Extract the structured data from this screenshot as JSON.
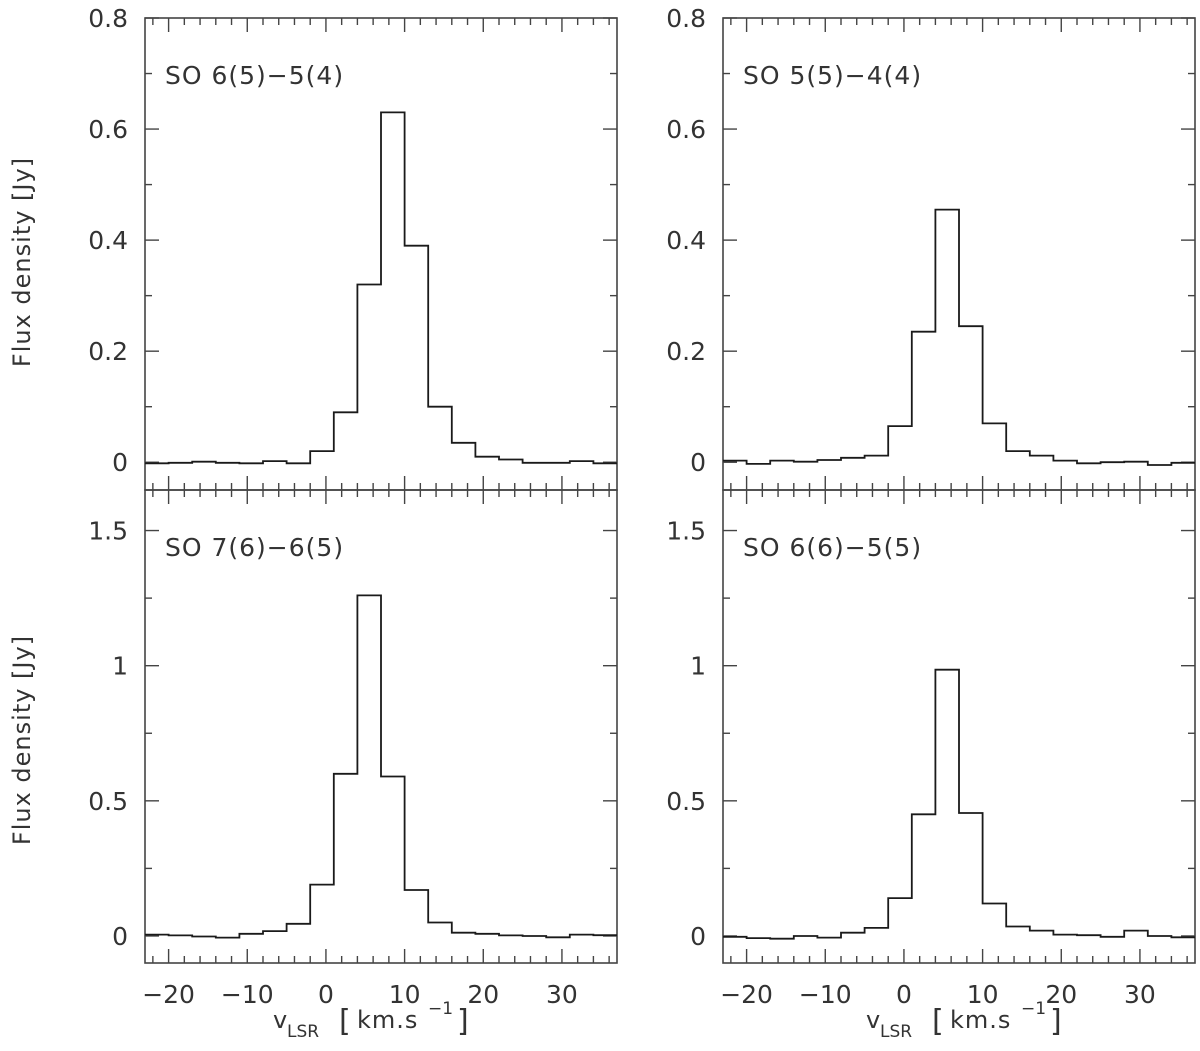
{
  "chart_data": [
    {
      "type": "line",
      "step": true,
      "label": "SO 6(5)−5(4)",
      "xlim": [
        -23,
        37
      ],
      "ylim": [
        -0.05,
        0.8
      ],
      "yticks": [
        0,
        0.2,
        0.4,
        0.6,
        0.8
      ],
      "ytick_labels": [
        "0",
        "0.2",
        "0.4",
        "0.6",
        "0.8"
      ],
      "xticks": [
        -20,
        -10,
        0,
        10,
        20,
        30
      ],
      "xtick_labels": [],
      "ylabel": "Flux density [Jy]",
      "edges": [
        -23,
        -20,
        -17,
        -14,
        -11,
        -8,
        -5,
        -2,
        1,
        4,
        7,
        10,
        13,
        16,
        19,
        22,
        25,
        28,
        31,
        34,
        37
      ],
      "values": [
        -0.002,
        -0.001,
        0.001,
        -0.001,
        -0.002,
        0.002,
        -0.002,
        0.02,
        0.09,
        0.32,
        0.63,
        0.39,
        0.1,
        0.035,
        0.01,
        0.005,
        -0.001,
        -0.001,
        0.002,
        -0.002
      ]
    },
    {
      "type": "line",
      "step": true,
      "label": "SO 5(5)−4(4)",
      "xlim": [
        -23,
        37
      ],
      "ylim": [
        -0.05,
        0.8
      ],
      "yticks": [
        0,
        0.2,
        0.4,
        0.6,
        0.8
      ],
      "ytick_labels": [
        "0",
        "0.2",
        "0.4",
        "0.6",
        "0.8"
      ],
      "xticks": [
        -20,
        -10,
        0,
        10,
        20,
        30
      ],
      "xtick_labels": [],
      "ylabel": "",
      "edges": [
        -23,
        -20,
        -17,
        -14,
        -11,
        -8,
        -5,
        -2,
        1,
        4,
        7,
        10,
        13,
        16,
        19,
        22,
        25,
        28,
        31,
        34,
        37
      ],
      "values": [
        0.003,
        -0.003,
        0.003,
        0.001,
        0.004,
        0.008,
        0.012,
        0.065,
        0.235,
        0.455,
        0.245,
        0.07,
        0.02,
        0.012,
        0.003,
        -0.002,
        0.0,
        0.001,
        -0.005,
        -0.001
      ]
    },
    {
      "type": "line",
      "step": true,
      "label": "SO 7(6)−6(5)",
      "xlim": [
        -23,
        37
      ],
      "ylim": [
        -0.1,
        1.65
      ],
      "yticks": [
        0,
        0.5,
        1,
        1.5
      ],
      "ytick_labels": [
        "0",
        "0.5",
        "1",
        "1.5"
      ],
      "xticks": [
        -20,
        -10,
        0,
        10,
        20,
        30
      ],
      "xtick_labels": [
        "−20",
        "−10",
        "0",
        "10",
        "20",
        "30"
      ],
      "ylabel": "Flux density [Jy]",
      "xlabel": "v_LSR [km.s^−1]",
      "edges": [
        -23,
        -20,
        -17,
        -14,
        -11,
        -8,
        -5,
        -2,
        1,
        4,
        7,
        10,
        13,
        16,
        19,
        22,
        25,
        28,
        31,
        34,
        37
      ],
      "values": [
        0.005,
        0.002,
        -0.002,
        -0.006,
        0.008,
        0.018,
        0.045,
        0.19,
        0.6,
        1.26,
        0.59,
        0.17,
        0.05,
        0.012,
        0.008,
        0.002,
        0.0,
        -0.005,
        0.005,
        0.003
      ]
    },
    {
      "type": "line",
      "step": true,
      "label": "SO 6(6)−5(5)",
      "xlim": [
        -23,
        37
      ],
      "ylim": [
        -0.1,
        1.65
      ],
      "yticks": [
        0,
        0.5,
        1,
        1.5
      ],
      "ytick_labels": [
        "0",
        "0.5",
        "1",
        "1.5"
      ],
      "xticks": [
        -20,
        -10,
        0,
        10,
        20,
        30
      ],
      "xtick_labels": [
        "−20",
        "−10",
        "0",
        "10",
        "20",
        "30"
      ],
      "ylabel": "",
      "xlabel": "v_LSR [km.s^−1]",
      "edges": [
        -23,
        -20,
        -17,
        -14,
        -11,
        -8,
        -5,
        -2,
        1,
        4,
        7,
        10,
        13,
        16,
        19,
        22,
        25,
        28,
        31,
        34,
        37
      ],
      "values": [
        -0.003,
        -0.008,
        -0.01,
        0.0,
        -0.006,
        0.012,
        0.03,
        0.14,
        0.45,
        0.985,
        0.455,
        0.12,
        0.035,
        0.02,
        0.005,
        0.003,
        -0.003,
        0.02,
        0.0,
        -0.005
      ]
    }
  ],
  "labels": {
    "ylabel": "Flux density [Jy]",
    "xlabel_v": "v",
    "xlabel_sub": "LSR",
    "xlabel_units": "km.s",
    "xlabel_exp": "−1",
    "bracket_open": "[",
    "bracket_close": "]"
  }
}
